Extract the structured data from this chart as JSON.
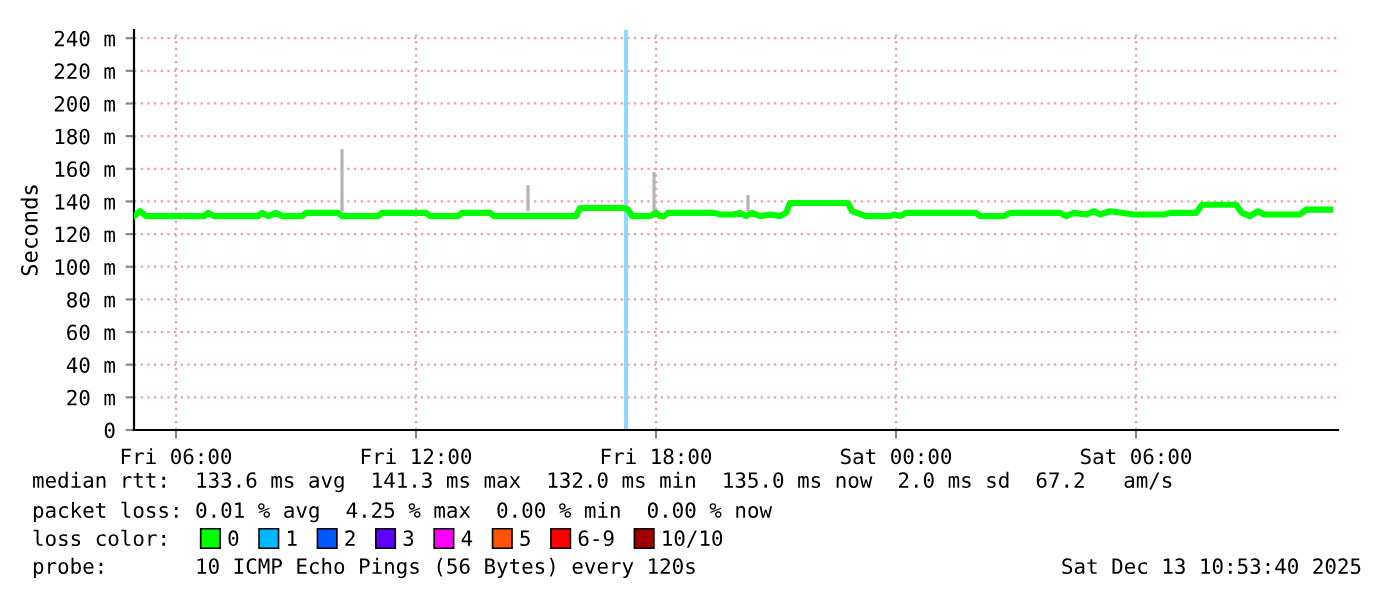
{
  "chart_data": {
    "type": "line",
    "ylabel": "Seconds",
    "xlim": [
      "2025-12-12T04:57",
      "2025-12-13T11:03"
    ],
    "xticks": [
      {
        "value": "2025-12-12T06:00",
        "label": "Fri 06:00"
      },
      {
        "value": "2025-12-12T12:00",
        "label": "Fri 12:00"
      },
      {
        "value": "2025-12-12T18:00",
        "label": "Fri 18:00"
      },
      {
        "value": "2025-12-13T00:00",
        "label": "Sat 00:00"
      },
      {
        "value": "2025-12-13T06:00",
        "label": "Sat 06:00"
      }
    ],
    "ylim": [
      0,
      245
    ],
    "yticks": [
      0,
      {
        "value": 20,
        "label": "20 m"
      },
      {
        "value": 40,
        "label": "40 m"
      },
      {
        "value": 60,
        "label": "60 m"
      },
      {
        "value": 80,
        "label": "80 m"
      },
      {
        "value": 100,
        "label": "100 m"
      },
      {
        "value": 120,
        "label": "120 m"
      },
      {
        "value": 140,
        "label": "140 m"
      },
      {
        "value": 160,
        "label": "160 m"
      },
      {
        "value": 180,
        "label": "180 m"
      },
      {
        "value": 200,
        "label": "200 m"
      },
      {
        "value": 220,
        "label": "220 m"
      },
      {
        "value": 240,
        "label": "240 m"
      }
    ],
    "grid": true,
    "legend": "bottom",
    "legend_title": "loss color:",
    "series": [
      {
        "type": "bar",
        "color": "#b4b4b4",
        "x": [
          "2025-12-12T10:09",
          "2025-12-12T14:48",
          "2025-12-12T17:57",
          "2025-12-12T20:18"
        ],
        "base": [
          134,
          134,
          134,
          134
        ],
        "values": [
          38,
          16,
          24,
          10
        ]
      },
      {
        "name": "0",
        "color": "#00ff00",
        "x": [
          "2025-12-12T04:57",
          "2025-12-12T05:06",
          "2025-12-12T05:15",
          "2025-12-12T06:42",
          "2025-12-12T06:48",
          "2025-12-12T06:57",
          "2025-12-12T08:03",
          "2025-12-12T08:09",
          "2025-12-12T08:18",
          "2025-12-12T08:30",
          "2025-12-12T08:39",
          "2025-12-12T09:09",
          "2025-12-12T09:15",
          "2025-12-12T10:03",
          "2025-12-12T10:09",
          "2025-12-12T11:03",
          "2025-12-12T11:09",
          "2025-12-12T12:15",
          "2025-12-12T12:21",
          "2025-12-12T13:03",
          "2025-12-12T13:09",
          "2025-12-12T13:51",
          "2025-12-12T13:57",
          "2025-12-12T16:00",
          "2025-12-12T16:06",
          "2025-12-12T17:12",
          "2025-12-12T17:18",
          "2025-12-12T17:24",
          "2025-12-12T17:51",
          "2025-12-12T18:00",
          "2025-12-12T18:06",
          "2025-12-12T18:12",
          "2025-12-12T18:18",
          "2025-12-12T19:27",
          "2025-12-12T19:36",
          "2025-12-12T19:57",
          "2025-12-12T20:06",
          "2025-12-12T20:15",
          "2025-12-12T20:24",
          "2025-12-12T20:36",
          "2025-12-12T20:51",
          "2025-12-12T21:06",
          "2025-12-12T21:15",
          "2025-12-12T21:21",
          "2025-12-12T22:48",
          "2025-12-12T22:54",
          "2025-12-12T23:15",
          "2025-12-12T23:51",
          "2025-12-12T23:57",
          "2025-12-13T00:06",
          "2025-12-13T00:15",
          "2025-12-13T02:00",
          "2025-12-13T02:06",
          "2025-12-13T02:42",
          "2025-12-13T02:51",
          "2025-12-13T04:06",
          "2025-12-13T04:15",
          "2025-12-13T04:27",
          "2025-12-13T04:45",
          "2025-12-13T04:57",
          "2025-12-13T05:06",
          "2025-12-13T05:21",
          "2025-12-13T05:57",
          "2025-12-13T06:42",
          "2025-12-13T06:51",
          "2025-12-13T07:30",
          "2025-12-13T07:39",
          "2025-12-13T08:30",
          "2025-12-13T08:39",
          "2025-12-13T08:51",
          "2025-12-13T09:03",
          "2025-12-13T09:12",
          "2025-12-13T10:06",
          "2025-12-13T10:15",
          "2025-12-13T10:51"
        ],
        "values": [
          131,
          134,
          131,
          131,
          133,
          131,
          131,
          133,
          131,
          133,
          131,
          131,
          133,
          133,
          131,
          131,
          133,
          133,
          131,
          131,
          133,
          133,
          131,
          131,
          136,
          136,
          135,
          131,
          131,
          133,
          131,
          131,
          133,
          133,
          132,
          132,
          133,
          131,
          133,
          131,
          132,
          131,
          133,
          139,
          139,
          134,
          131,
          131,
          132,
          131,
          133,
          133,
          131,
          131,
          133,
          133,
          131,
          133,
          132,
          134,
          132,
          134,
          132,
          132,
          133,
          133,
          138,
          138,
          133,
          131,
          134,
          132,
          132,
          135,
          135
        ]
      },
      {
        "name": "1",
        "color": "#00b8ff"
      },
      {
        "name": "2",
        "color": "#0059ff"
      },
      {
        "name": "3",
        "color": "#5e00ff"
      },
      {
        "name": "4",
        "color": "#ff00ff"
      },
      {
        "name": "5",
        "color": "#ff5500"
      },
      {
        "name": "6-9",
        "color": "#ff0000"
      },
      {
        "name": "10/10",
        "color": "#a10000"
      }
    ],
    "bands": [
      {
        "axis": "x",
        "from": "2025-12-12T17:12",
        "to": "2025-12-12T17:18",
        "color": "#8fd8ff"
      }
    ],
    "annotations": [
      "median rtt:  133.6 ms avg  141.3 ms max  132.0 ms min  135.0 ms now  2.0 ms sd  67.2   am/s",
      "packet loss: 0.01 % avg  4.25 % max  0.00 % min  0.00 % now",
      "probe:       10 ICMP Echo Pings (56 Bytes) every 120s",
      "Sat Dec 13 10:53:40 2025"
    ]
  }
}
